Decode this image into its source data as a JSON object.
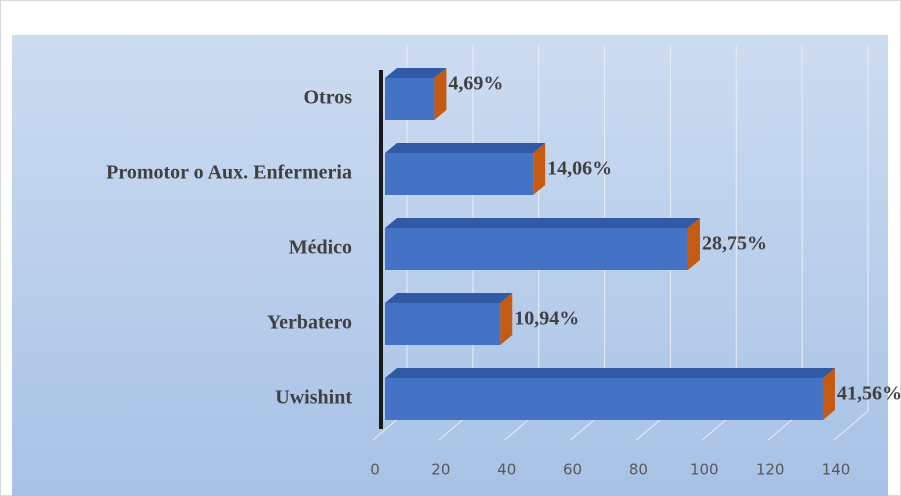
{
  "chart_data": {
    "type": "bar3d_horizontal",
    "categories": [
      "Otros",
      "Promotor o Aux. Enfermeria",
      "Médico",
      "Yerbatero",
      "Uwishint"
    ],
    "values": [
      15,
      45,
      92,
      35,
      133
    ],
    "data_labels": [
      "4,69%",
      "14,06%",
      "28,75%",
      "10,94%",
      "41,56%"
    ],
    "color": "#4472c4",
    "side_color": "#c55a11",
    "xlim": [
      0,
      140
    ],
    "xticks": [
      0,
      20,
      40,
      60,
      80,
      100,
      120,
      140
    ],
    "grid": true
  }
}
